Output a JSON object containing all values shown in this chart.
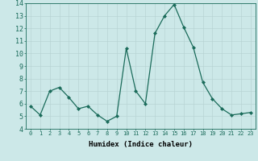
{
  "x": [
    0,
    1,
    2,
    3,
    4,
    5,
    6,
    7,
    8,
    9,
    10,
    11,
    12,
    13,
    14,
    15,
    16,
    17,
    18,
    19,
    20,
    21,
    22,
    23
  ],
  "y": [
    5.8,
    5.1,
    7.0,
    7.3,
    6.5,
    5.6,
    5.8,
    5.1,
    4.6,
    5.0,
    10.4,
    7.0,
    6.0,
    11.6,
    13.0,
    13.9,
    12.1,
    10.5,
    7.7,
    6.4,
    5.6,
    5.1,
    5.2,
    5.3
  ],
  "line_color": "#1a6b5a",
  "marker_color": "#1a6b5a",
  "bg_color": "#cce8e8",
  "grid_color": "#b8d4d4",
  "xlabel": "Humidex (Indice chaleur)",
  "ylim": [
    4,
    14
  ],
  "xlim_min": -0.5,
  "xlim_max": 23.5,
  "yticks": [
    4,
    5,
    6,
    7,
    8,
    9,
    10,
    11,
    12,
    13,
    14
  ],
  "xtick_labels": [
    "0",
    "1",
    "2",
    "3",
    "4",
    "5",
    "6",
    "7",
    "8",
    "9",
    "10",
    "11",
    "12",
    "13",
    "14",
    "15",
    "16",
    "17",
    "18",
    "19",
    "20",
    "21",
    "22",
    "23"
  ]
}
